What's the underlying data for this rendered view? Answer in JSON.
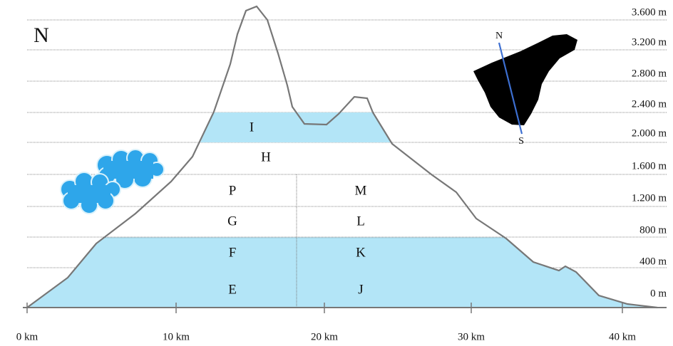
{
  "header": {
    "north": "N"
  },
  "map": {
    "north": "N",
    "south": "S"
  },
  "altitudes": [
    "3.600 m",
    "3.200 m",
    "2.800 m",
    "2.400 m",
    "2.000 m",
    "1.600 m",
    "1.200 m",
    "800 m",
    "400 m",
    "0 m"
  ],
  "distances": [
    "0 km",
    "10 km",
    "20 km",
    "30 km",
    "40 km"
  ],
  "zones": [
    "I",
    "H",
    "P",
    "M",
    "G",
    "L",
    "F",
    "K",
    "E",
    "J"
  ]
}
